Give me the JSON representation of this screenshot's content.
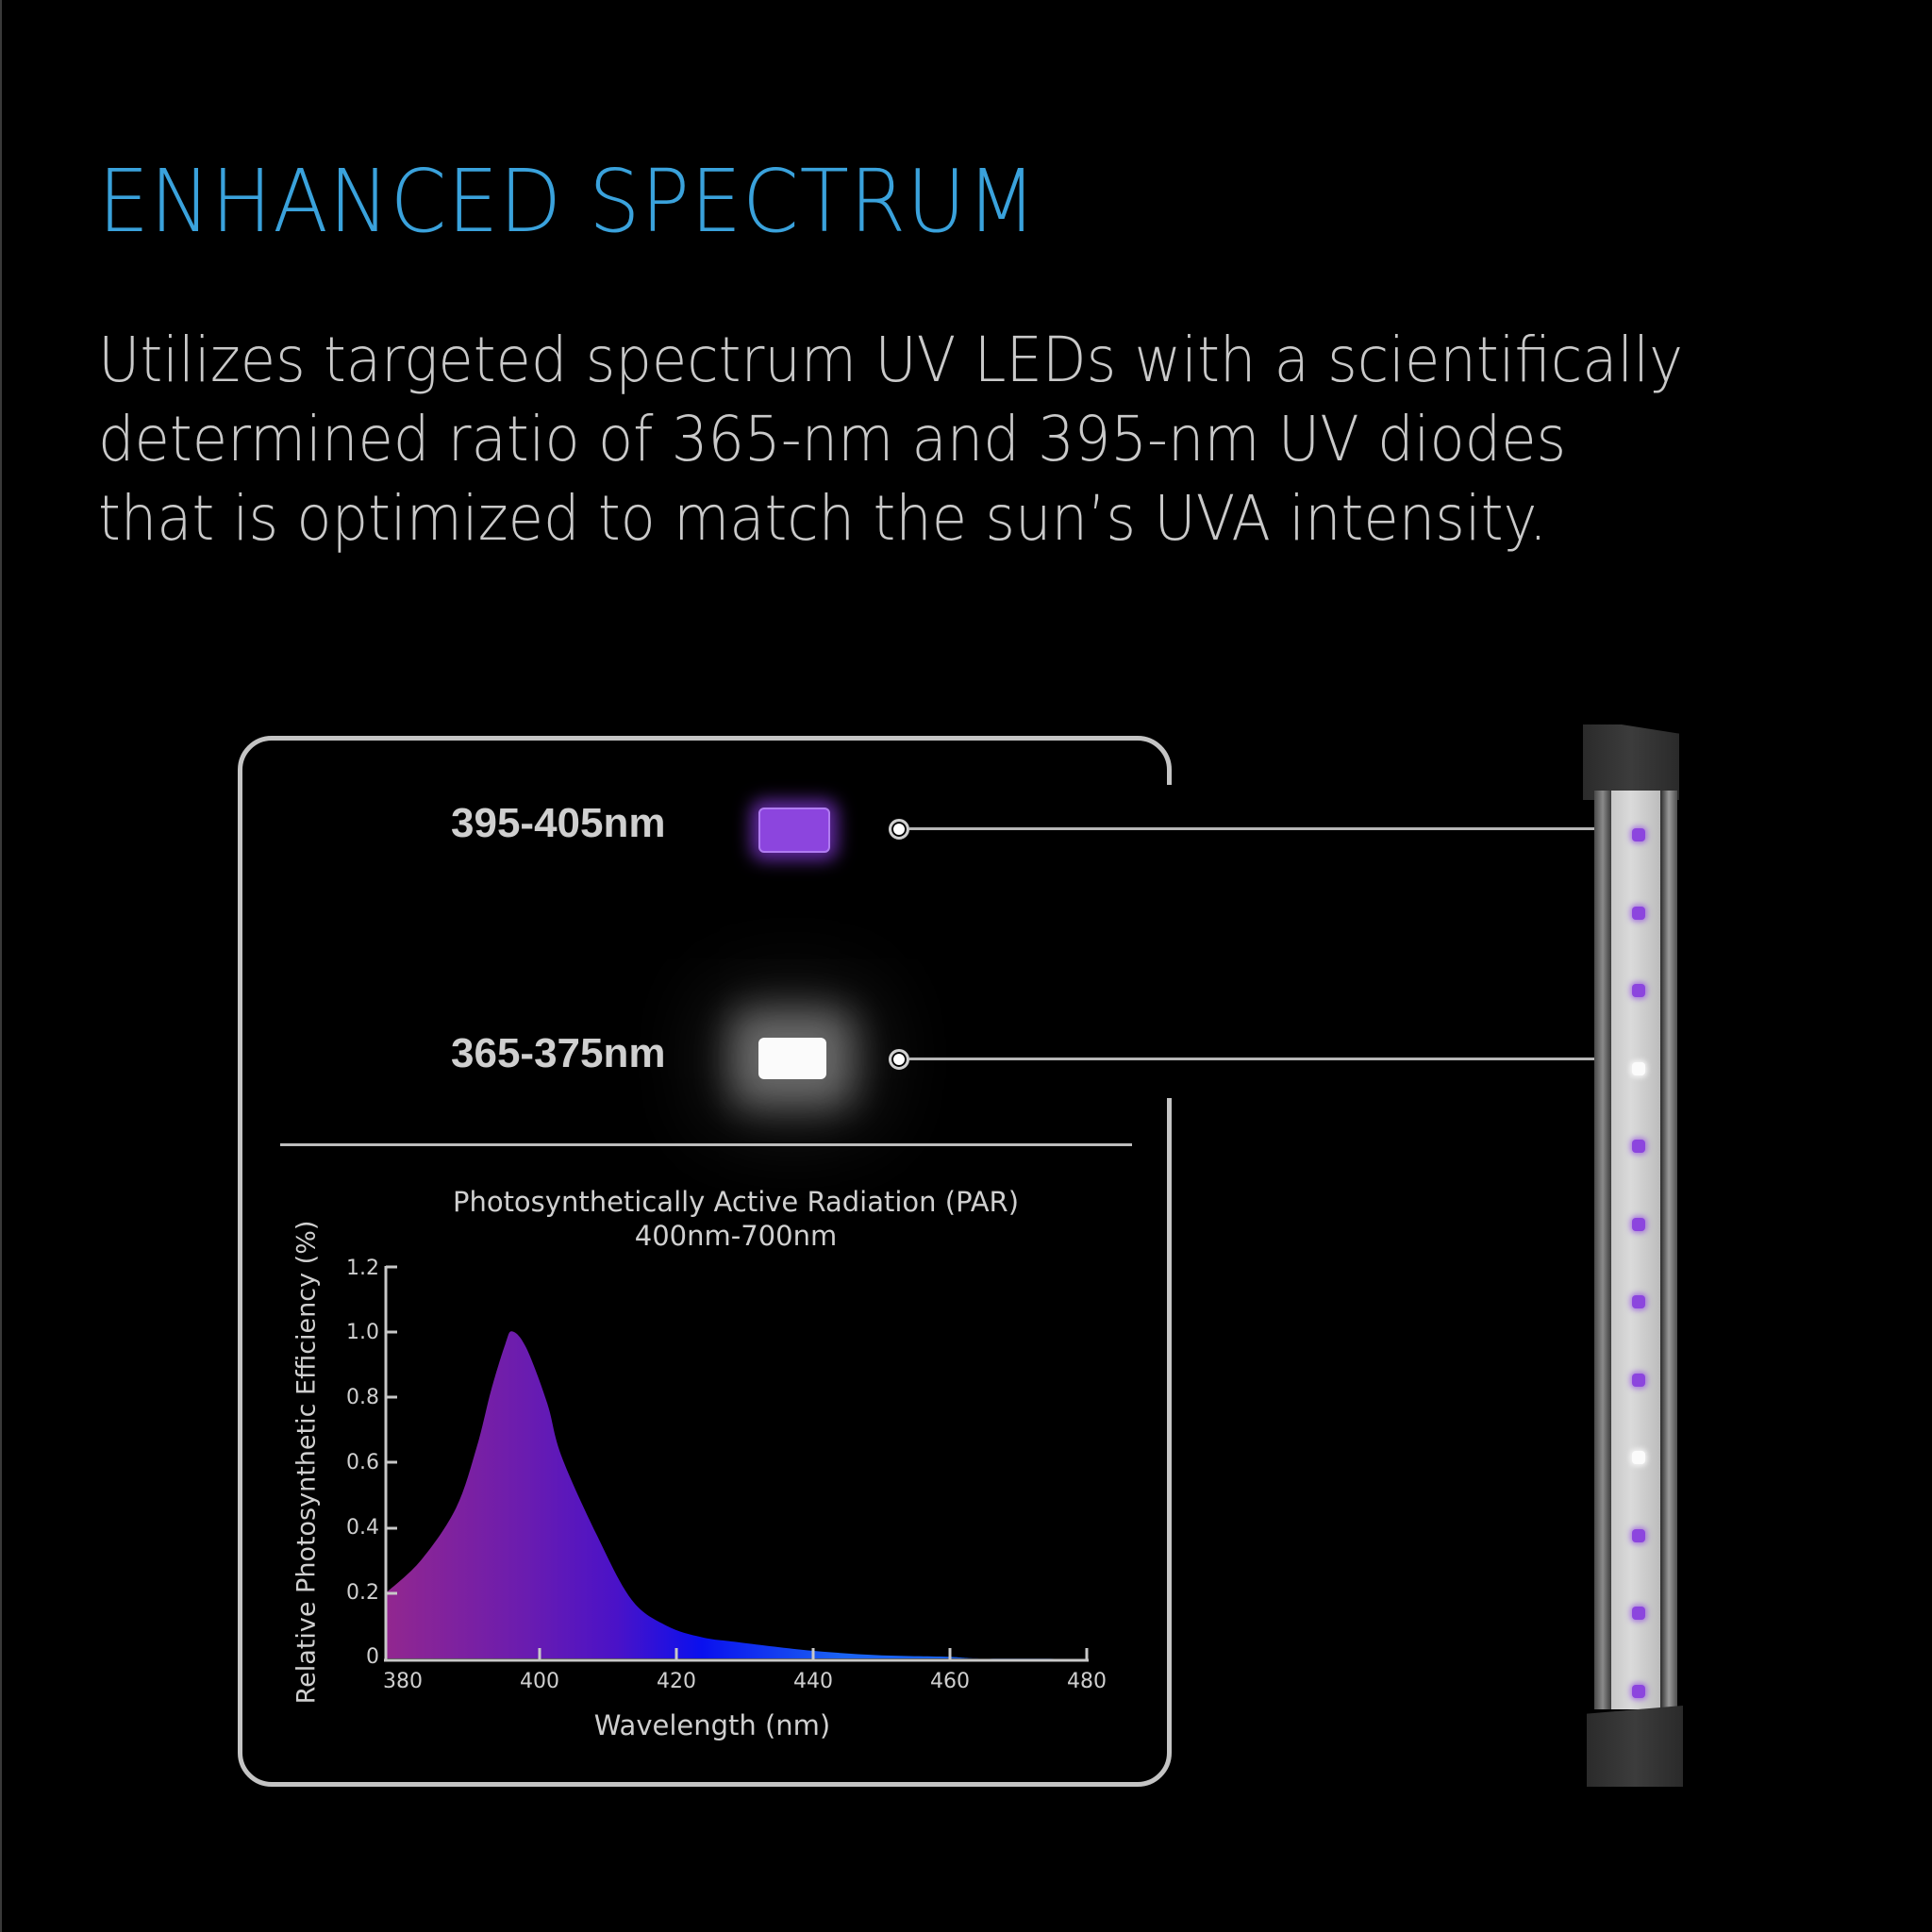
{
  "header": {
    "title": "ENHANCED SPECTRUM",
    "description_lines": [
      "Utilizes targeted spectrum UV LEDs with a scientifically",
      "determined ratio of 365-nm and 395-nm UV diodes",
      "that is optimized to match the sun’s UVA intensity."
    ]
  },
  "colors": {
    "title": "#3aa2dc",
    "text": "#c9c9c9",
    "background": "#000000",
    "led_purple": "#8c45de",
    "led_white": "#fbfbfb",
    "fill_start": "#92278f",
    "fill_mid": "#4a12c8",
    "fill_blue": "#0a10ee",
    "fill_end": "#1b63f2"
  },
  "leds": [
    {
      "label": "395-405nm",
      "type": "purple"
    },
    {
      "label": "365-375nm",
      "type": "white"
    }
  ],
  "light_bar": {
    "led_sequence": [
      "purple",
      "purple",
      "purple",
      "white",
      "purple",
      "purple",
      "purple",
      "purple",
      "white",
      "purple",
      "purple",
      "purple"
    ]
  },
  "chart_data": {
    "type": "area",
    "title": "Photosynthetically Active Radiation (PAR)",
    "subtitle": "400nm-700nm",
    "xlabel": "Wavelength (nm)",
    "ylabel": "Relative Photosynthetic Efficiency (%)",
    "xlim": [
      380,
      480
    ],
    "ylim": [
      0,
      1.2
    ],
    "xticks": [
      380,
      400,
      420,
      440,
      460,
      480
    ],
    "yticks": [
      "0",
      "0.2",
      "0.4",
      "0.6",
      "0.8",
      "1.0",
      "1.2"
    ],
    "grid": false,
    "legend": null,
    "x": [
      380,
      385,
      390,
      393,
      395,
      397,
      398,
      400,
      403,
      405,
      410,
      415,
      420,
      425,
      430,
      440,
      450,
      460,
      465,
      480
    ],
    "series": [
      {
        "name": "Relative Photosynthetic Efficiency",
        "values": [
          0.2,
          0.3,
          0.46,
          0.65,
          0.82,
          0.96,
          1.0,
          0.95,
          0.78,
          0.62,
          0.38,
          0.18,
          0.1,
          0.065,
          0.05,
          0.025,
          0.01,
          0.005,
          0.0,
          0.0
        ]
      }
    ]
  }
}
